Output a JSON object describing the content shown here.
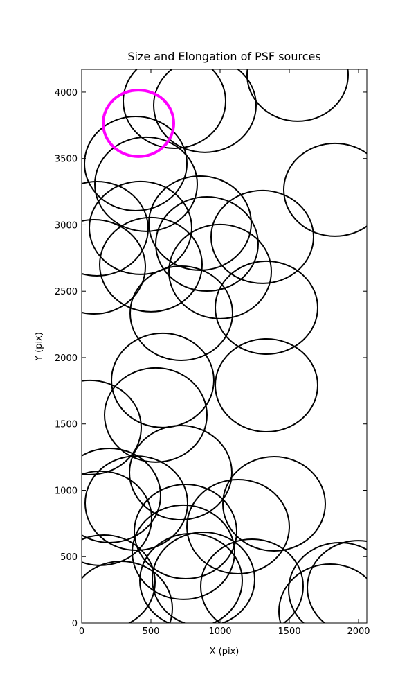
{
  "chart_data": {
    "type": "ellipse",
    "title": "Size and Elongation of PSF sources",
    "x_label": "X (pix)",
    "y_label": "Y (pix)",
    "xlim": [
      0,
      2060
    ],
    "ylim": [
      0,
      4172
    ],
    "xticks": [
      0,
      500,
      1000,
      1500,
      2000
    ],
    "yticks": [
      0,
      500,
      1000,
      1500,
      2000,
      2500,
      3000,
      3500,
      4000
    ],
    "series": [
      {
        "color": "#000000",
        "x": [
          670,
          890,
          1560,
          390,
          465,
          1830,
          110,
          425,
          855,
          905,
          1305,
          500,
          90,
          1000,
          1335,
          720,
          585,
          1335,
          535,
          60,
          715,
          1390,
          200,
          395,
          135,
          750,
          1130,
          735,
          160,
          790,
          880,
          1230,
          285,
          1865,
          2000,
          1795
        ],
        "values": [
          3932,
          3901,
          4131,
          3462,
          3306,
          3264,
          2971,
          2977,
          3013,
          2856,
          2909,
          2700,
          2684,
          2648,
          2376,
          2334,
          1828,
          1791,
          1567,
          1473,
          1133,
          898,
          961,
          903,
          789,
          689,
          726,
          533,
          308,
          319,
          329,
          277,
          110,
          251,
          266,
          89
        ],
        "width": [
          740,
          740,
          730,
          740,
          740,
          740,
          740,
          740,
          740,
          740,
          740,
          740,
          740,
          740,
          740,
          740,
          740,
          740,
          740,
          740,
          740,
          740,
          740,
          740,
          740,
          740,
          740,
          740,
          740,
          740,
          740,
          740,
          740,
          740,
          740,
          740
        ],
        "height": [
          710,
          710,
          700,
          710,
          710,
          700,
          710,
          700,
          710,
          710,
          700,
          710,
          710,
          710,
          700,
          710,
          710,
          700,
          710,
          710,
          710,
          710,
          710,
          710,
          710,
          710,
          710,
          710,
          710,
          710,
          710,
          710,
          710,
          710,
          710,
          710
        ]
      },
      {
        "color": "#ff00ff",
        "x": [
          410
        ],
        "values": [
          3765
        ],
        "width": [
          510
        ],
        "height": [
          500
        ]
      }
    ]
  }
}
